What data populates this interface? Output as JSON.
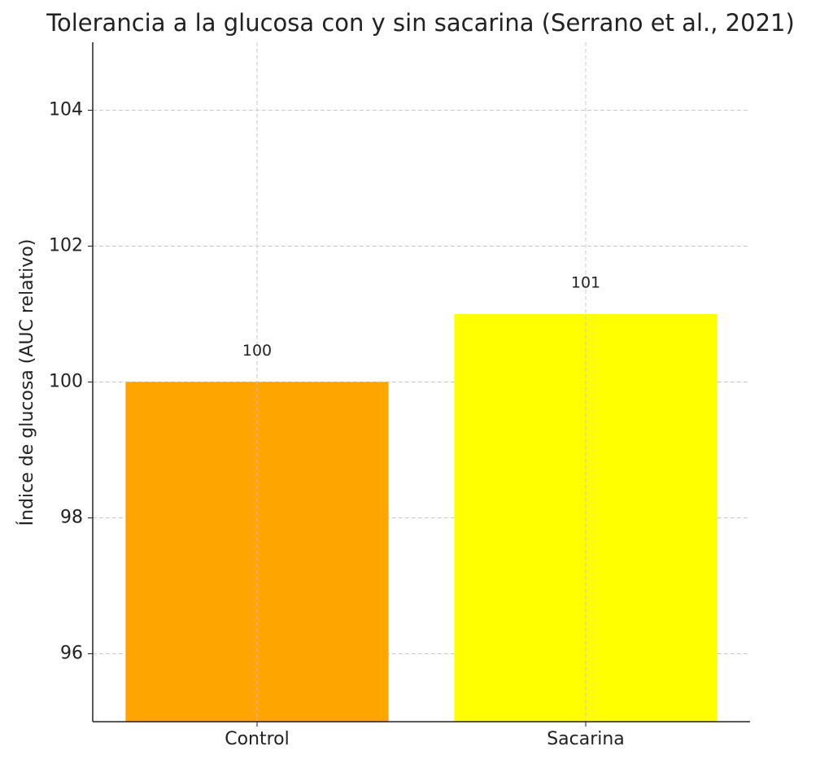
{
  "chart_data": {
    "type": "bar",
    "title": "Tolerancia a la glucosa con y sin sacarina (Serrano et al., 2021)",
    "y_label": "Índice de glucosa (AUC relativo)",
    "categories": [
      "Control",
      "Sacarina"
    ],
    "values": [
      100,
      101
    ],
    "colors": [
      "#ffa500",
      "#ffff00"
    ],
    "ylim": [
      95,
      105
    ],
    "yticks": [
      96,
      98,
      100,
      102,
      104
    ],
    "grid": true
  }
}
